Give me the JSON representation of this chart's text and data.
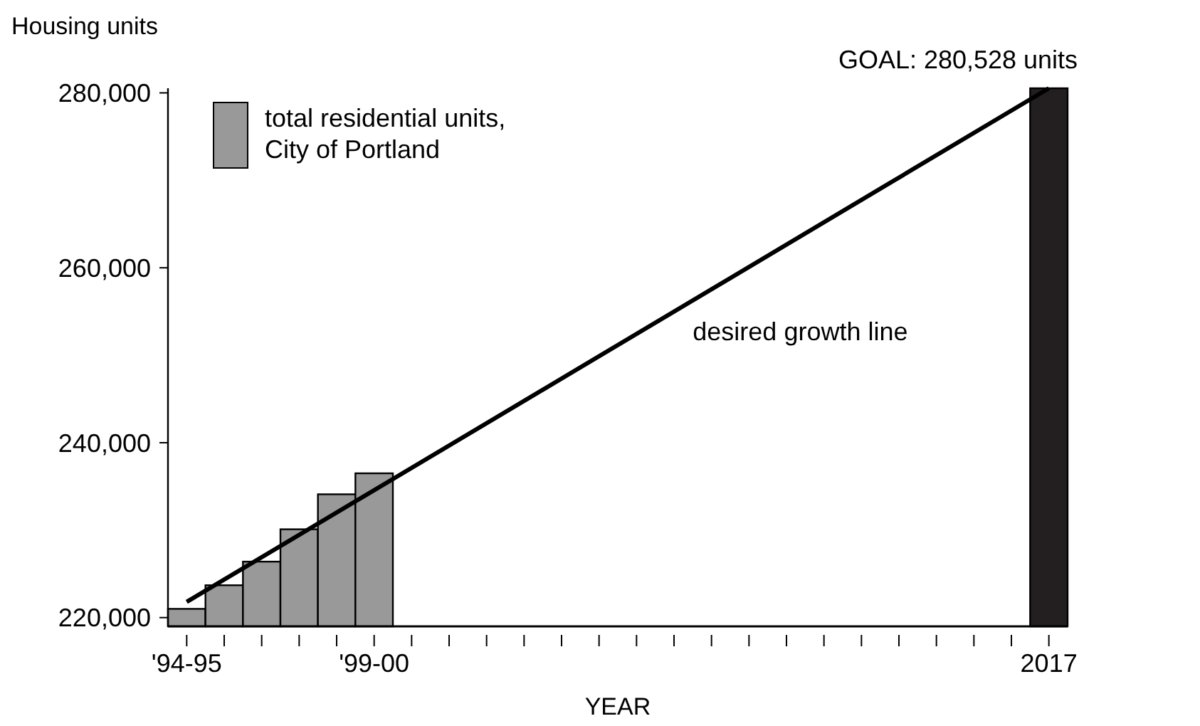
{
  "chart_data": {
    "type": "bar",
    "xlabel": "YEAR",
    "ylabel": "Housing units",
    "categories": [
      "'94-95",
      null,
      null,
      null,
      null,
      "'99-00",
      null,
      null,
      null,
      null,
      null,
      null,
      null,
      null,
      null,
      null,
      null,
      null,
      null,
      null,
      null,
      null,
      null,
      "2017"
    ],
    "series": [
      {
        "name": "total residential units, City of Portland",
        "color": "#999999",
        "values": [
          221000,
          223700,
          226400,
          230100,
          234100,
          236500,
          null,
          null,
          null,
          null,
          null,
          null,
          null,
          null,
          null,
          null,
          null,
          null,
          null,
          null,
          null,
          null,
          null,
          null
        ]
      },
      {
        "color": "#231f20",
        "values": [
          null,
          null,
          null,
          null,
          null,
          null,
          null,
          null,
          null,
          null,
          null,
          null,
          null,
          null,
          null,
          null,
          null,
          null,
          null,
          null,
          null,
          null,
          null,
          280528
        ]
      },
      {
        "type": "line",
        "color": "#000000",
        "values": [
          221800,
          null,
          null,
          null,
          null,
          null,
          null,
          null,
          null,
          null,
          null,
          null,
          null,
          null,
          null,
          null,
          null,
          null,
          null,
          null,
          null,
          null,
          null,
          280528
        ]
      }
    ],
    "ylim": [
      219000,
      280528
    ],
    "yticks": [
      {
        "value": 220000,
        "label": "220,000"
      },
      {
        "value": 240000,
        "label": "240,000"
      },
      {
        "value": 260000,
        "label": "260,000"
      },
      {
        "value": 280000,
        "label": "280,000"
      }
    ],
    "annotations": [
      {
        "text": "GOAL: 280,528 units",
        "x": "2017",
        "y": 280528
      },
      "desired growth line"
    ],
    "legend": "top left",
    "grid": false
  }
}
